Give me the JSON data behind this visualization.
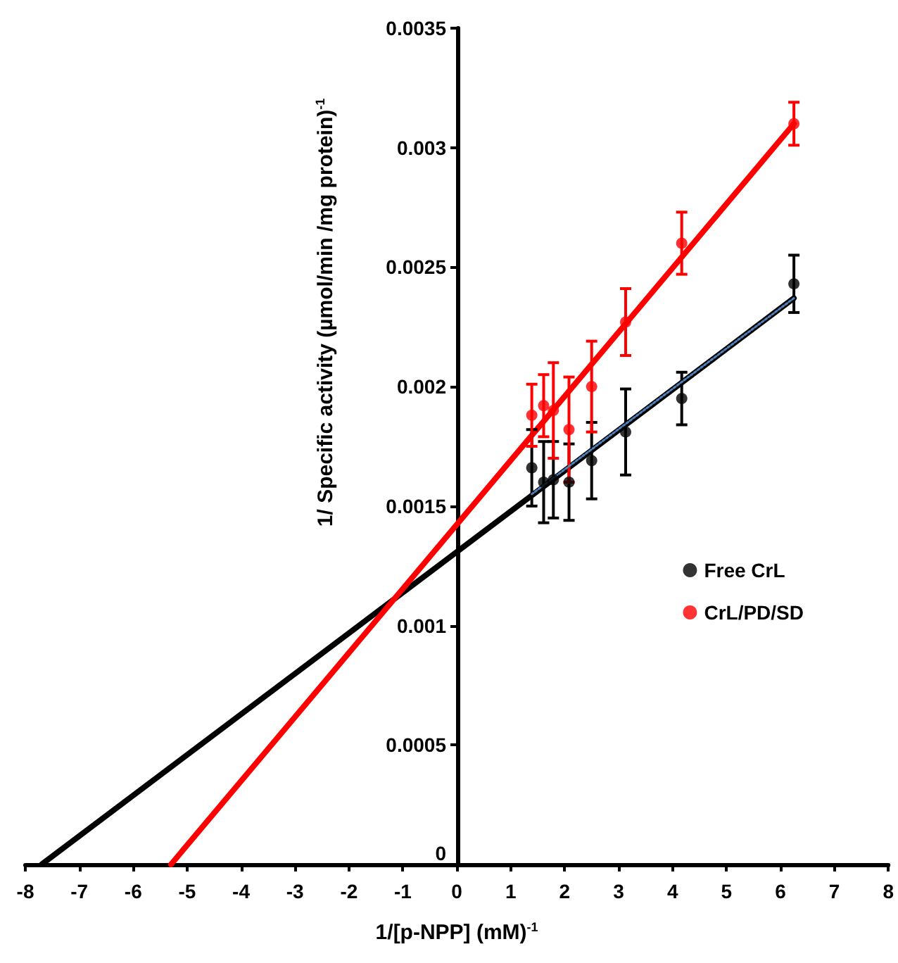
{
  "chart_data": {
    "type": "scatter",
    "xlabel": "1/[p-NPP] (mM)$^{-1}$",
    "ylabel": "1/ Specific activity (µmol/min /mg protein)$^{-1}$",
    "xlim": [
      -8,
      8
    ],
    "xticks": [
      -8,
      -7,
      -6,
      -5,
      -4,
      -3,
      -2,
      -1,
      0,
      1,
      2,
      3,
      4,
      5,
      6,
      7,
      8
    ],
    "ylim": [
      0,
      0.0035
    ],
    "yticks": [
      0,
      0.0005,
      0.001,
      0.0015,
      0.002,
      0.0025,
      0.003,
      0.0035
    ],
    "legend": "right",
    "marker": "circle",
    "series": [
      {
        "name": "Free CrL",
        "color": "#000000",
        "x": [
          1.39,
          1.61,
          1.79,
          2.08,
          2.5,
          3.13,
          4.17,
          6.25
        ],
        "values": [
          0.00166,
          0.0016,
          0.00161,
          0.0016,
          0.00169,
          0.00181,
          0.00195,
          0.00243
        ],
        "errors": [
          0.00016,
          0.00017,
          0.00016,
          0.00016,
          0.00016,
          0.00018,
          0.00011,
          0.00012
        ]
      },
      {
        "name": "CrL/PD/SD",
        "color": "#ff0000",
        "x": [
          1.39,
          1.61,
          1.79,
          2.08,
          2.5,
          3.13,
          4.17,
          6.25
        ],
        "values": [
          0.00188,
          0.00192,
          0.0019,
          0.00182,
          0.002,
          0.00227,
          0.0026,
          0.0031
        ],
        "errors": [
          0.00013,
          0.00013,
          0.0002,
          0.00022,
          0.00019,
          0.00014,
          0.00013,
          9e-05
        ]
      },
      {
        "type": "line",
        "color": "#000000",
        "line_style": "solid",
        "marker": "none",
        "x": [
          -7.7,
          6.25
        ],
        "values": [
          0,
          0.00237
        ]
      },
      {
        "type": "line",
        "color": "#ff0000",
        "line_style": "solid",
        "marker": "none",
        "x": [
          -5.3,
          6.25
        ],
        "values": [
          0,
          0.0031
        ]
      },
      {
        "type": "line",
        "color": "#4f81bd",
        "line_style": "dotted",
        "marker": "none",
        "x": [
          1.39,
          6.25
        ],
        "values": [
          0.00155,
          0.00237
        ]
      }
    ]
  }
}
